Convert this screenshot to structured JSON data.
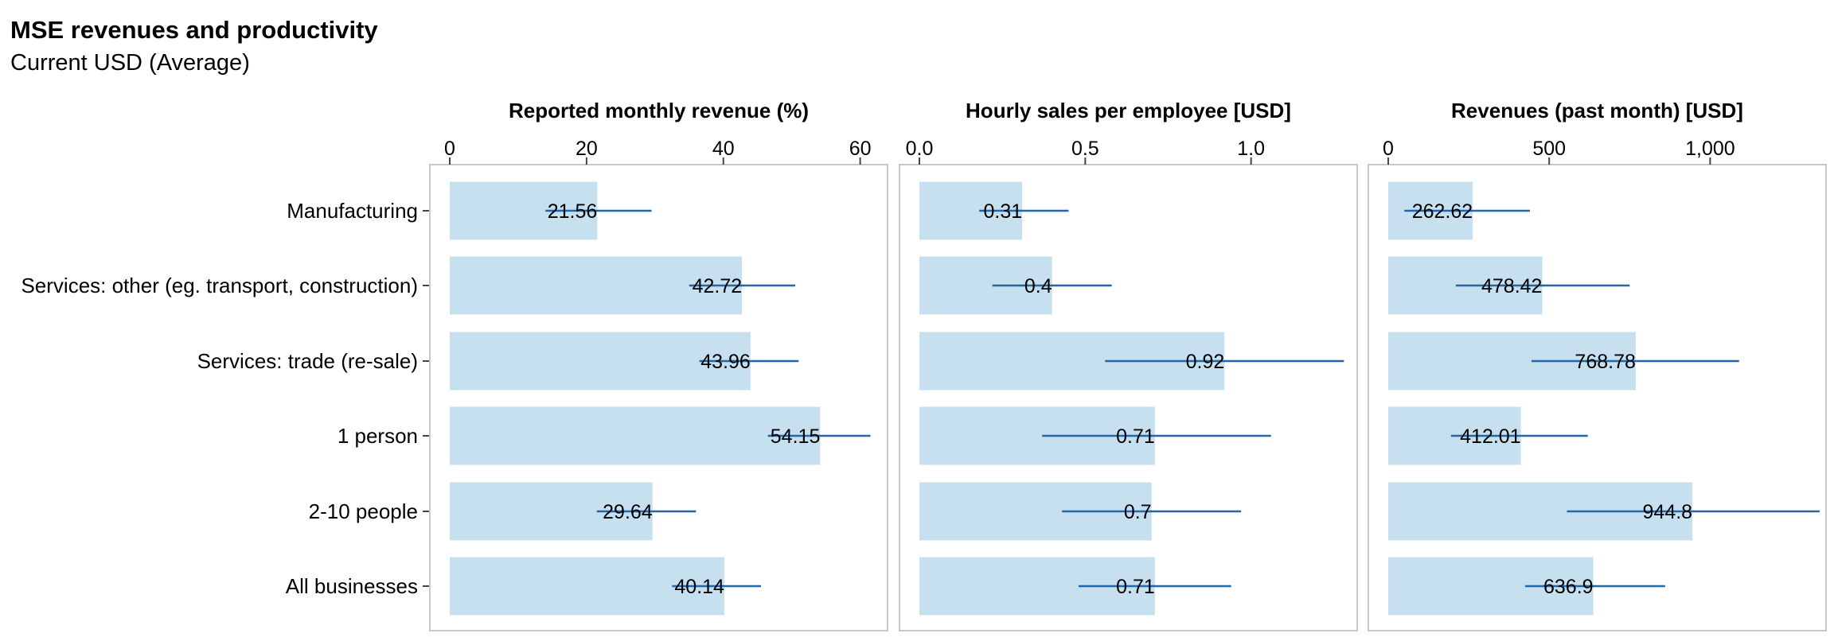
{
  "header": {
    "title": "MSE revenues and productivity",
    "subtitle": "Current USD (Average)"
  },
  "colors": {
    "bar": "#c6e0f0",
    "error_bar": "#2467a8",
    "panel_border": "#c8c8c8",
    "tick": "#444444"
  },
  "chart_data": {
    "type": "bar",
    "orientation": "horizontal",
    "error_bars": true,
    "categories": [
      "Manufacturing",
      "Services: other (eg. transport, construction)",
      "Services: trade (re-sale)",
      "1 person",
      "2-10 people",
      "All businesses"
    ],
    "panels": [
      {
        "title": "Reported monthly revenue (%)",
        "xlim": [
          0,
          64
        ],
        "ticks": [
          0,
          20,
          40,
          60
        ],
        "tick_labels": [
          "0",
          "20",
          "40",
          "60"
        ],
        "values": [
          21.56,
          42.72,
          43.96,
          54.15,
          29.64,
          40.14
        ],
        "value_labels": [
          "21.56",
          "42.72",
          "43.96",
          "54.15",
          "29.64",
          "40.14"
        ],
        "ci_low": [
          14.0,
          35.0,
          36.5,
          46.5,
          21.5,
          32.5
        ],
        "ci_high": [
          29.5,
          50.5,
          51.0,
          61.5,
          36.0,
          45.5
        ]
      },
      {
        "title": "Hourly sales per employee [USD]",
        "xlim": [
          0,
          1.32
        ],
        "ticks": [
          0,
          0.5,
          1.0
        ],
        "tick_labels": [
          "0.0",
          "0.5",
          "1.0"
        ],
        "values": [
          0.31,
          0.4,
          0.92,
          0.71,
          0.7,
          0.71
        ],
        "value_labels": [
          "0.31",
          "0.4",
          "0.92",
          "0.71",
          "0.7",
          "0.71"
        ],
        "ci_low": [
          0.18,
          0.22,
          0.56,
          0.37,
          0.43,
          0.48
        ],
        "ci_high": [
          0.45,
          0.58,
          1.28,
          1.06,
          0.97,
          0.94
        ]
      },
      {
        "title": "Revenues (past month) [USD]",
        "xlim": [
          0,
          1360
        ],
        "ticks": [
          0,
          500,
          1000
        ],
        "tick_labels": [
          "0",
          "500",
          "1,000"
        ],
        "values": [
          262.62,
          478.42,
          768.78,
          412.01,
          944.8,
          636.9
        ],
        "value_labels": [
          "262.62",
          "478.42",
          "768.78",
          "412.01",
          "944.8",
          "636.9"
        ],
        "ci_low": [
          50,
          210,
          445,
          195,
          555,
          425
        ],
        "ci_high": [
          440,
          750,
          1090,
          620,
          1340,
          860
        ]
      }
    ]
  }
}
